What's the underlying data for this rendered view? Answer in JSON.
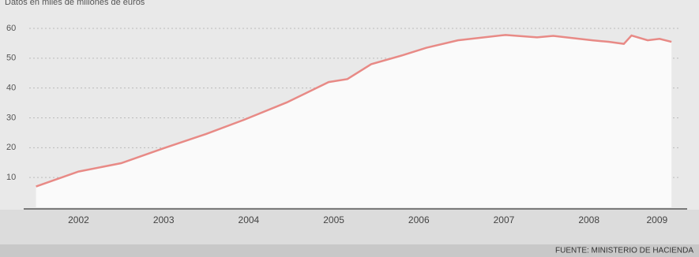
{
  "chart_data": {
    "type": "line",
    "subtitle": "Datos en miles de millones de euros",
    "source": "FUENTE: MINISTERIO DE HACIENDA",
    "x": [
      2002.0,
      2002.5,
      2003.0,
      2003.5,
      2004.0,
      2004.45,
      2004.95,
      2005.44,
      2005.66,
      2005.94,
      2006.31,
      2006.59,
      2006.96,
      2007.52,
      2007.89,
      2008.08,
      2008.54,
      2008.73,
      2008.91,
      2009.0,
      2009.19,
      2009.33,
      2009.47
    ],
    "series": [
      {
        "color": "#e88a86",
        "values": [
          7,
          12,
          14.8,
          19.8,
          24.6,
          29.4,
          35.2,
          42,
          43,
          48,
          51,
          53.5,
          56,
          57.8,
          57,
          57.5,
          56,
          55.5,
          54.8,
          57.6,
          56,
          56.5,
          55.5
        ]
      }
    ],
    "xlim": [
      2001.92,
      2009.58
    ],
    "xticks": [
      {
        "value": 2002.5,
        "label": "2002"
      },
      {
        "value": 2003.5,
        "label": "2003"
      },
      {
        "value": 2004.5,
        "label": "2004"
      },
      {
        "value": 2005.5,
        "label": "2005"
      },
      {
        "value": 2006.5,
        "label": "2006"
      },
      {
        "value": 2007.5,
        "label": "2007"
      },
      {
        "value": 2008.5,
        "label": "2008"
      },
      {
        "value": 2009.3,
        "label": "2009"
      }
    ],
    "ylim": [
      0,
      60
    ],
    "yticks": [
      10,
      20,
      30,
      40,
      50,
      60
    ],
    "grid": true
  }
}
